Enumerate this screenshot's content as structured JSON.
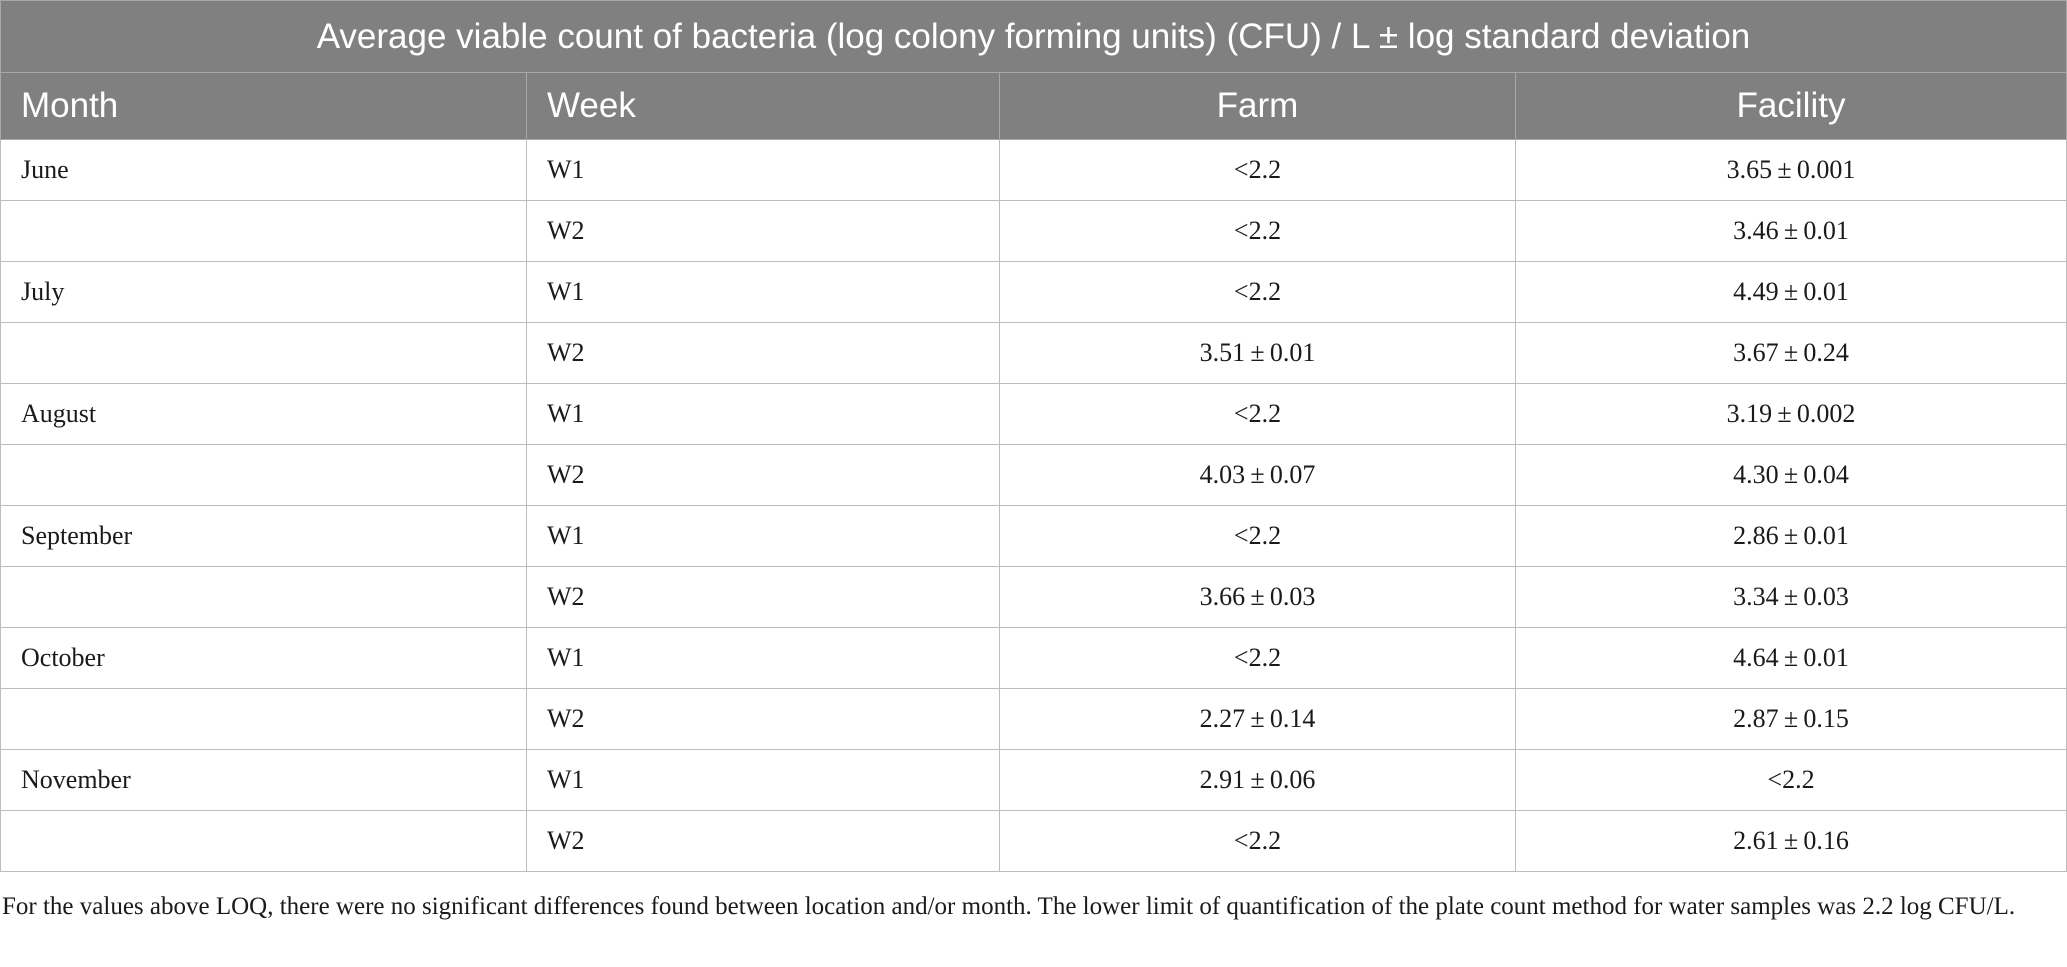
{
  "table": {
    "title": "Average viable count of bacteria (log colony forming units) (CFU) / L ± log standard deviation",
    "headers": {
      "month": "Month",
      "week": "Week",
      "farm": "Farm",
      "facility": "Facility"
    },
    "rows": [
      {
        "month": "June",
        "week": "W1",
        "farm": "<2.2",
        "facility": "3.65 ± 0.001"
      },
      {
        "month": "",
        "week": "W2",
        "farm": "<2.2",
        "facility": "3.46 ± 0.01"
      },
      {
        "month": "July",
        "week": "W1",
        "farm": "<2.2",
        "facility": "4.49 ± 0.01"
      },
      {
        "month": "",
        "week": "W2",
        "farm": "3.51 ± 0.01",
        "facility": "3.67 ± 0.24"
      },
      {
        "month": "August",
        "week": "W1",
        "farm": "<2.2",
        "facility": "3.19 ± 0.002"
      },
      {
        "month": "",
        "week": "W2",
        "farm": "4.03 ± 0.07",
        "facility": "4.30 ± 0.04"
      },
      {
        "month": "September",
        "week": "W1",
        "farm": "<2.2",
        "facility": "2.86 ± 0.01"
      },
      {
        "month": "",
        "week": "W2",
        "farm": "3.66 ± 0.03",
        "facility": "3.34 ± 0.03"
      },
      {
        "month": "October",
        "week": "W1",
        "farm": "<2.2",
        "facility": "4.64 ± 0.01"
      },
      {
        "month": "",
        "week": "W2",
        "farm": "2.27 ± 0.14",
        "facility": "2.87 ± 0.15"
      },
      {
        "month": "November",
        "week": "W1",
        "farm": "2.91 ± 0.06",
        "facility": "<2.2"
      },
      {
        "month": "",
        "week": "W2",
        "farm": "<2.2",
        "facility": "2.61 ± 0.16"
      }
    ]
  },
  "footnote": "For the values above LOQ, there were no significant differences found between location and/or month. The lower limit of quantification of the plate count method for water samples was 2.2 log CFU/L."
}
